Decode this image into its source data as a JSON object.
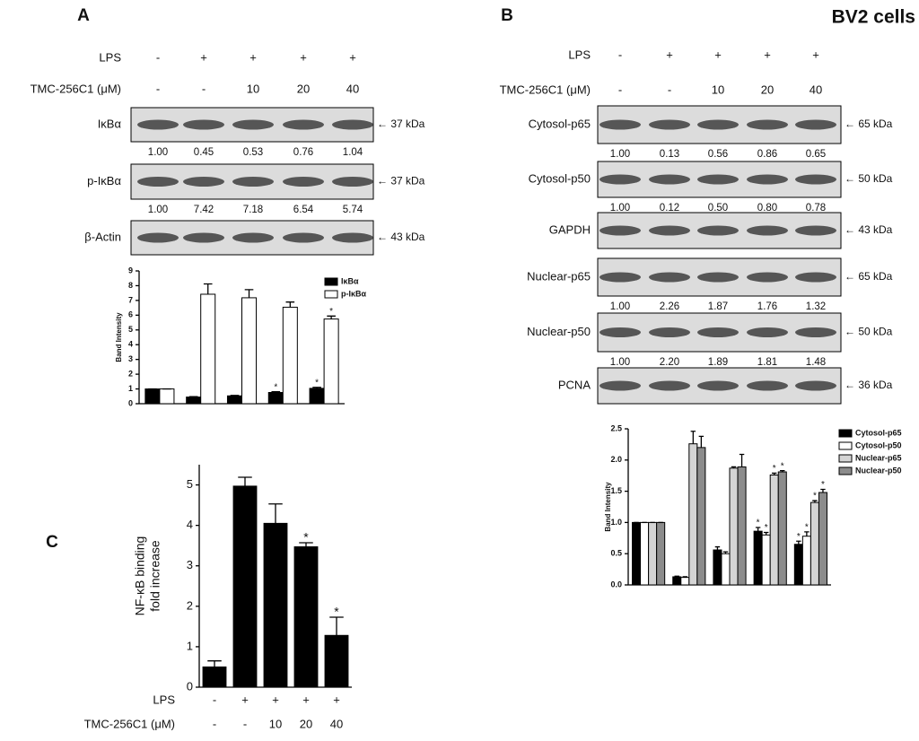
{
  "panel_a": {
    "label": "A",
    "conditions": [
      {
        "label": "LPS",
        "values": [
          "-",
          "+",
          "+",
          "+",
          "+"
        ]
      },
      {
        "label": "TMC-256C1 (μM)",
        "values": [
          "-",
          "-",
          "10",
          "20",
          "40"
        ]
      }
    ],
    "blots": [
      {
        "label": "IκBα",
        "size": "← 37 kDa",
        "quant": [
          "1.00",
          "0.45",
          "0.53",
          "0.76",
          "1.04"
        ]
      },
      {
        "label": "p-IκBα",
        "size": "← 37 kDa",
        "quant": [
          "1.00",
          "7.42",
          "7.18",
          "6.54",
          "5.74"
        ]
      },
      {
        "label": "β-Actin",
        "size": "← 43 kDa"
      }
    ]
  },
  "panel_b": {
    "label": "B",
    "title": "BV2 cells",
    "conditions": [
      {
        "label": "LPS",
        "values": [
          "-",
          "+",
          "+",
          "+",
          "+"
        ]
      },
      {
        "label": "TMC-256C1 (μM)",
        "values": [
          "-",
          "-",
          "10",
          "20",
          "40"
        ]
      }
    ],
    "blots": [
      {
        "label": "Cytosol-p65",
        "size": "← 65 kDa",
        "quant": [
          "1.00",
          "0.13",
          "0.56",
          "0.86",
          "0.65"
        ]
      },
      {
        "label": "Cytosol-p50",
        "size": "← 50 kDa",
        "quant": [
          "1.00",
          "0.12",
          "0.50",
          "0.80",
          "0.78"
        ]
      },
      {
        "label": "GAPDH",
        "size": "← 43 kDa"
      },
      {
        "label": "Nuclear-p65",
        "size": "← 65 kDa",
        "quant": [
          "1.00",
          "2.26",
          "1.87",
          "1.76",
          "1.32"
        ]
      },
      {
        "label": "Nuclear-p50",
        "size": "← 50 kDa",
        "quant": [
          "1.00",
          "2.20",
          "1.89",
          "1.81",
          "1.48"
        ]
      },
      {
        "label": "PCNA",
        "size": "← 36 kDa"
      }
    ]
  },
  "panel_c": {
    "label": "C",
    "conditions": [
      {
        "label": "LPS",
        "values": [
          "-",
          "+",
          "+",
          "+",
          "+"
        ]
      },
      {
        "label": "TMC-256C1 (μM)",
        "values": [
          "-",
          "-",
          "10",
          "20",
          "40"
        ]
      }
    ]
  },
  "chart_data": [
    {
      "type": "bar",
      "ylabel": [
        "Band Intensity"
      ],
      "categories": [
        null,
        null,
        null,
        null,
        null
      ],
      "ylim": [
        0,
        9
      ],
      "yticks": [
        0,
        1,
        2,
        3,
        4,
        5,
        6,
        7,
        8,
        9
      ],
      "series": [
        {
          "name": "IκBα",
          "color": "#000000",
          "values": [
            1.0,
            0.45,
            0.53,
            0.76,
            1.04
          ],
          "errors": [
            0,
            0.03,
            0.03,
            0.05,
            0.07
          ],
          "significance": [
            null,
            null,
            null,
            "*",
            "*"
          ]
        },
        {
          "name": "p-IκBα",
          "color": "#ffffff",
          "values": [
            1.0,
            7.42,
            7.18,
            6.54,
            5.74
          ],
          "errors": [
            0,
            0.7,
            0.55,
            0.35,
            0.2
          ],
          "significance": [
            null,
            null,
            null,
            null,
            "*"
          ]
        }
      ]
    },
    {
      "type": "bar",
      "ylabel": [
        "Band Intensity"
      ],
      "categories": [
        null,
        null,
        null,
        null,
        null
      ],
      "ylim": [
        0,
        2.5
      ],
      "yticks": [
        {
          "value": 0,
          "label": "0.0"
        },
        0.5,
        {
          "value": 1,
          "label": "1.0"
        },
        1.5,
        {
          "value": 2,
          "label": "2.0"
        },
        2.5
      ],
      "series": [
        {
          "name": "Cytosol-p65",
          "color": "#000000",
          "values": [
            1.0,
            0.13,
            0.56,
            0.86,
            0.65
          ],
          "errors": [
            0,
            0.01,
            0.05,
            0.06,
            0.05
          ],
          "significance": [
            null,
            null,
            null,
            "*",
            "*"
          ]
        },
        {
          "name": "Cytosol-p50",
          "color": "#ffffff",
          "values": [
            1.0,
            0.12,
            0.5,
            0.8,
            0.78
          ],
          "errors": [
            0,
            0.01,
            0.03,
            0.04,
            0.07
          ],
          "significance": [
            null,
            null,
            null,
            "*",
            "*"
          ]
        },
        {
          "name": "Nuclear-p65",
          "color": "#d4d4d4",
          "values": [
            1.0,
            2.26,
            1.87,
            1.76,
            1.32
          ],
          "errors": [
            0,
            0.2,
            0.02,
            0.03,
            0.03
          ],
          "significance": [
            null,
            null,
            null,
            "*",
            "*"
          ]
        },
        {
          "name": "Nuclear-p50",
          "color": "#8c8c8c",
          "values": [
            1.0,
            2.2,
            1.89,
            1.81,
            1.48
          ],
          "errors": [
            0,
            0.18,
            0.2,
            0.02,
            0.05
          ],
          "significance": [
            null,
            null,
            null,
            "*",
            "*"
          ]
        }
      ]
    },
    {
      "type": "bar",
      "ylabel": [
        "NF-κB binding",
        "fold increase"
      ],
      "categories": [
        null,
        null,
        null,
        null,
        null
      ],
      "ylim": [
        0,
        5.5
      ],
      "yticks": [
        0,
        1,
        2,
        3,
        4,
        5
      ],
      "color": "#000000",
      "values": [
        0.5,
        4.97,
        4.05,
        3.47,
        1.28
      ],
      "errors": [
        0.15,
        0.22,
        0.48,
        0.1,
        0.45
      ],
      "significance": [
        null,
        null,
        null,
        "*",
        "*"
      ]
    }
  ]
}
